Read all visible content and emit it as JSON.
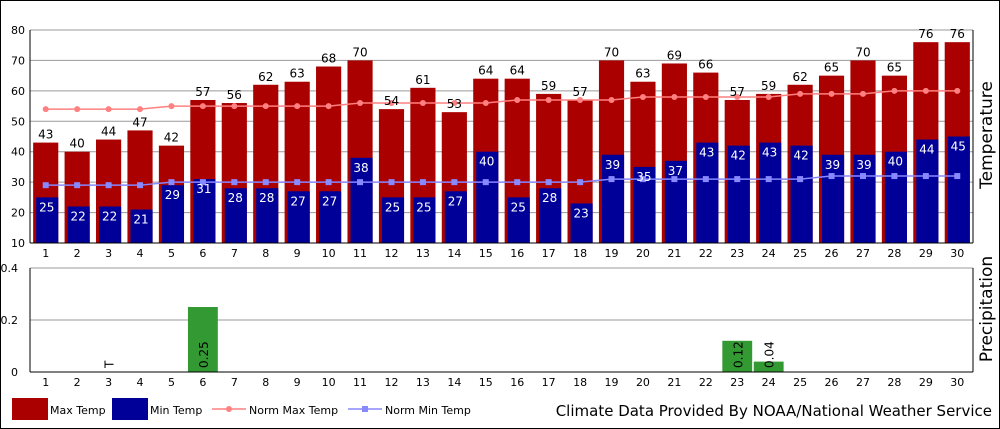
{
  "chart_data": [
    {
      "type": "bar",
      "x": [
        1,
        2,
        3,
        4,
        5,
        6,
        7,
        8,
        9,
        10,
        11,
        12,
        13,
        14,
        15,
        16,
        17,
        18,
        19,
        20,
        21,
        22,
        23,
        24,
        25,
        26,
        27,
        28,
        29,
        30
      ],
      "series": [
        {
          "name": "Max Temp",
          "kind": "bar",
          "values": [
            43,
            40,
            44,
            47,
            42,
            57,
            56,
            62,
            63,
            68,
            70,
            54,
            61,
            53,
            64,
            64,
            59,
            57,
            70,
            63,
            69,
            66,
            57,
            59,
            62,
            65,
            70,
            65,
            76,
            76
          ]
        },
        {
          "name": "Min Temp",
          "kind": "bar",
          "values": [
            25,
            22,
            22,
            21,
            29,
            31,
            28,
            28,
            27,
            27,
            38,
            25,
            25,
            27,
            40,
            25,
            28,
            23,
            39,
            35,
            37,
            43,
            42,
            43,
            42,
            39,
            39,
            40,
            44,
            45
          ]
        },
        {
          "name": "Norm Max Temp",
          "kind": "line",
          "values": [
            54,
            54,
            54,
            54,
            55,
            55,
            55,
            55,
            55,
            55,
            56,
            56,
            56,
            56,
            56,
            57,
            57,
            57,
            57,
            58,
            58,
            58,
            58,
            58,
            59,
            59,
            59,
            60,
            60,
            60
          ]
        },
        {
          "name": "Norm Min Temp",
          "kind": "line",
          "values": [
            29,
            29,
            29,
            29,
            30,
            30,
            30,
            30,
            30,
            30,
            30,
            30,
            30,
            30,
            30,
            30,
            30,
            30,
            31,
            31,
            31,
            31,
            31,
            31,
            31,
            32,
            32,
            32,
            32,
            32
          ]
        }
      ],
      "ylabel": "Temperature",
      "ylim": [
        10,
        80
      ],
      "yticks": [
        10,
        20,
        30,
        40,
        50,
        60,
        70,
        80
      ],
      "grid": true,
      "colors": {
        "max": "#aa0000",
        "min": "#000099",
        "norm_max": "#ff8080",
        "norm_min": "#8888ff",
        "min_label": "#ffffff"
      }
    },
    {
      "type": "bar",
      "x": [
        1,
        2,
        3,
        4,
        5,
        6,
        7,
        8,
        9,
        10,
        11,
        12,
        13,
        14,
        15,
        16,
        17,
        18,
        19,
        20,
        21,
        22,
        23,
        24,
        25,
        26,
        27,
        28,
        29,
        30
      ],
      "series": [
        {
          "name": "Precipitation",
          "values": [
            0,
            0,
            0,
            0,
            0,
            0.25,
            0,
            0,
            0,
            0,
            0,
            0,
            0,
            0,
            0,
            0,
            0,
            0,
            0,
            0,
            0,
            0,
            0.12,
            0.04,
            0,
            0,
            0,
            0,
            0,
            0
          ]
        }
      ],
      "trace": [
        {
          "day": 3,
          "label": "T"
        }
      ],
      "value_labels": [
        {
          "day": 6,
          "label": "0.25"
        },
        {
          "day": 23,
          "label": "0.12"
        },
        {
          "day": 24,
          "label": "0.04"
        }
      ],
      "ylabel": "Precipitation",
      "ylim": [
        0,
        0.4
      ],
      "yticks": [
        0,
        0.2,
        0.4
      ],
      "ytick_labels": [
        "0",
        "0.2",
        "0.4"
      ],
      "grid": true,
      "colors": {
        "bar": "#339933"
      }
    }
  ],
  "legend": [
    {
      "label": "Max Temp",
      "type": "box",
      "color": "#aa0000"
    },
    {
      "label": "Min Temp",
      "type": "box",
      "color": "#000099"
    },
    {
      "label": "Norm Max Temp",
      "type": "line",
      "color": "#ff8080"
    },
    {
      "label": "Norm Min Temp",
      "type": "line",
      "color": "#8888ff"
    }
  ],
  "credit": "Climate Data Provided By NOAA/National Weather Service"
}
